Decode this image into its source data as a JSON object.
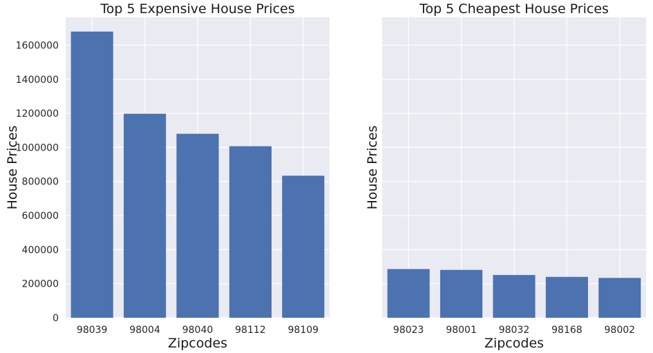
{
  "chart_data": [
    {
      "type": "bar",
      "title": "Top 5 Expensive House Prices",
      "xlabel": "Zipcodes",
      "ylabel": "House Prices",
      "categories": [
        "98039",
        "98004",
        "98040",
        "98112",
        "98109"
      ],
      "values": [
        1680000,
        1198000,
        1080000,
        1007000,
        834000
      ],
      "ylim": [
        0,
        1764000
      ],
      "yticks": [
        0,
        200000,
        400000,
        600000,
        800000,
        1000000,
        1200000,
        1400000,
        1600000
      ],
      "ytick_labels": [
        "0",
        "200000",
        "400000",
        "600000",
        "800000",
        "1000000",
        "1200000",
        "1400000",
        "1600000"
      ],
      "grid": true,
      "bar_color": "#4c72b0",
      "background_color": "#eaeaf2"
    },
    {
      "type": "bar",
      "title": "Top 5 Cheapest House Prices",
      "xlabel": "Zipcodes",
      "ylabel": "House Prices",
      "categories": [
        "98023",
        "98001",
        "98032",
        "98168",
        "98002"
      ],
      "values": [
        286000,
        281000,
        251000,
        240000,
        234000
      ],
      "ylim": [
        0,
        1764000
      ],
      "yticks": [
        0,
        200000,
        400000,
        600000,
        800000,
        1000000,
        1200000,
        1400000,
        1600000
      ],
      "ytick_labels": [],
      "grid": true,
      "bar_color": "#4c72b0",
      "background_color": "#eaeaf2"
    }
  ]
}
